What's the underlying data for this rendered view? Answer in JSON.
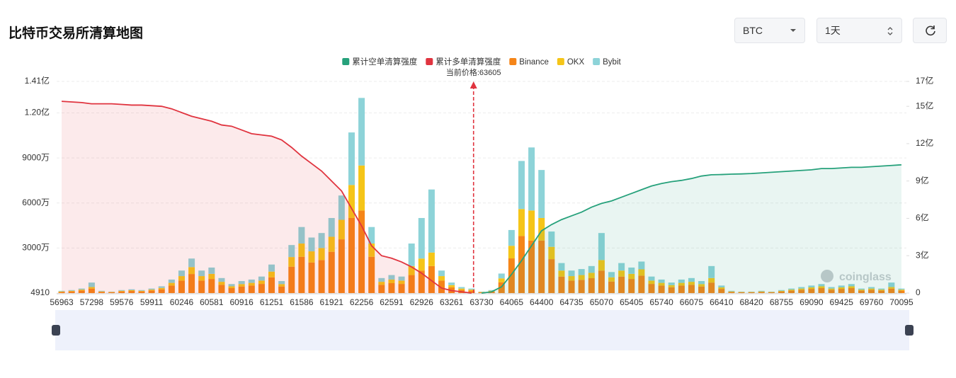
{
  "chart_data": {
    "type": "bar",
    "title": "比特币交易所清算地图",
    "stacked": true,
    "grid": true,
    "watermark": "coinglass",
    "annotation": {
      "text": "当前价格:63605",
      "x": 63605,
      "color": "#e0343f"
    },
    "categories": [
      "56963",
      null,
      null,
      "57298",
      null,
      null,
      "59576",
      null,
      null,
      "59911",
      null,
      null,
      "60246",
      null,
      null,
      "60581",
      null,
      null,
      "60916",
      null,
      null,
      "61251",
      null,
      null,
      "61586",
      null,
      null,
      "61921",
      null,
      null,
      "62256",
      null,
      null,
      "62591",
      null,
      null,
      "62926",
      null,
      null,
      "63261",
      null,
      null,
      "63730",
      null,
      null,
      "64065",
      null,
      null,
      "64400",
      null,
      null,
      "64735",
      null,
      null,
      "65070",
      null,
      null,
      "65405",
      null,
      null,
      "65740",
      null,
      null,
      "66075",
      null,
      null,
      "66410",
      null,
      null,
      "68420",
      null,
      null,
      "68755",
      null,
      null,
      "69090",
      null,
      null,
      "69425",
      null,
      null,
      "69760",
      null,
      null,
      "70095"
    ],
    "ylim": [
      4910,
      141000000
    ],
    "yticks": [
      4910,
      {
        "value": 30000000,
        "label": "3000万"
      },
      {
        "value": 60000000,
        "label": "6000万"
      },
      {
        "value": 90000000,
        "label": "9000万"
      },
      {
        "value": 120000000,
        "label": "1.20亿"
      },
      {
        "value": 141000000,
        "label": "1.41亿"
      }
    ],
    "y2lim": [
      0,
      1700000000
    ],
    "y2ticks": [
      0,
      {
        "value": 300000000,
        "label": "3亿"
      },
      {
        "value": 600000000,
        "label": "6亿"
      },
      {
        "value": 900000000,
        "label": "9亿"
      },
      {
        "value": 1200000000,
        "label": "12亿"
      },
      {
        "value": 1500000000,
        "label": "15亿"
      },
      {
        "value": 1700000000,
        "label": "17亿"
      }
    ],
    "series": [
      {
        "name": "累计空单清算强度",
        "color": "#26a17b",
        "type": "line",
        "axis": "y2",
        "values": [
          null,
          null,
          null,
          null,
          null,
          null,
          null,
          null,
          null,
          null,
          null,
          null,
          null,
          null,
          null,
          null,
          null,
          null,
          null,
          null,
          null,
          null,
          null,
          null,
          null,
          null,
          null,
          null,
          null,
          null,
          null,
          null,
          null,
          null,
          null,
          null,
          null,
          null,
          null,
          null,
          null,
          null,
          0,
          10000000,
          50000000,
          150000000,
          260000000,
          380000000,
          500000000,
          550000000,
          590000000,
          620000000,
          650000000,
          690000000,
          720000000,
          740000000,
          770000000,
          800000000,
          830000000,
          860000000,
          880000000,
          895000000,
          905000000,
          920000000,
          940000000,
          950000000,
          952000000,
          955000000,
          957000000,
          960000000,
          965000000,
          970000000,
          975000000,
          980000000,
          985000000,
          990000000,
          1000000000,
          1000000000,
          1005000000,
          1010000000,
          1010000000,
          1015000000,
          1020000000,
          1025000000,
          1030000000
        ]
      },
      {
        "name": "累计多单清算强度",
        "color": "#e0343f",
        "type": "line",
        "axis": "y2",
        "values": [
          1540000000,
          1535000000,
          1530000000,
          1520000000,
          1520000000,
          1520000000,
          1515000000,
          1510000000,
          1510000000,
          1505000000,
          1500000000,
          1480000000,
          1450000000,
          1420000000,
          1400000000,
          1380000000,
          1350000000,
          1340000000,
          1310000000,
          1280000000,
          1270000000,
          1260000000,
          1230000000,
          1170000000,
          1100000000,
          1040000000,
          980000000,
          900000000,
          820000000,
          680000000,
          540000000,
          380000000,
          300000000,
          280000000,
          250000000,
          210000000,
          160000000,
          100000000,
          40000000,
          20000000,
          10000000,
          0,
          null,
          null,
          null,
          null,
          null,
          null,
          null,
          null,
          null,
          null,
          null,
          null,
          null,
          null,
          null,
          null,
          null,
          null,
          null,
          null,
          null,
          null,
          null,
          null,
          null,
          null,
          null,
          null,
          null,
          null,
          null,
          null,
          null,
          null,
          null,
          null,
          null,
          null,
          null,
          null,
          null,
          null,
          null
        ]
      },
      {
        "name": "Binance",
        "color": "#f58518",
        "type": "bar",
        "values": [
          800000,
          1100000,
          1700000,
          3000000,
          800000,
          600000,
          1100000,
          1400000,
          1100000,
          1700000,
          2500000,
          5000000,
          8300000,
          12700000,
          8300000,
          9400000,
          5500000,
          3300000,
          4400000,
          5000000,
          6100000,
          10500000,
          4400000,
          17600000,
          24200000,
          20400000,
          22000000,
          27500000,
          35800000,
          50000000,
          55000000,
          24200000,
          5500000,
          6600000,
          6100000,
          12000000,
          15000000,
          18000000,
          8300000,
          3900000,
          2200000,
          1700000,
          600000,
          1100000,
          7200000,
          23100000,
          38000000,
          35000000,
          35000000,
          22600000,
          11000000,
          8300000,
          8800000,
          9900000,
          15000000,
          7700000,
          11000000,
          9400000,
          11600000,
          6100000,
          5000000,
          3900000,
          5000000,
          5500000,
          4400000,
          7000000,
          2800000,
          800000,
          600000,
          600000,
          800000,
          600000,
          1100000,
          1700000,
          2200000,
          2800000,
          3300000,
          2200000,
          2800000,
          3300000,
          1700000,
          2200000,
          1700000,
          3000000,
          1700000
        ]
      },
      {
        "name": "OKX",
        "color": "#f5c518",
        "type": "bar",
        "values": [
          300000,
          400000,
          600000,
          1000000,
          300000,
          200000,
          400000,
          500000,
          400000,
          600000,
          900000,
          1800000,
          3000000,
          4600000,
          3000000,
          3400000,
          2000000,
          1200000,
          1600000,
          1800000,
          2200000,
          3800000,
          1600000,
          6400000,
          8800000,
          7400000,
          8000000,
          10000000,
          13000000,
          22000000,
          30000000,
          8800000,
          2000000,
          2400000,
          2200000,
          6000000,
          8000000,
          9000000,
          3000000,
          1400000,
          800000,
          600000,
          200000,
          400000,
          2600000,
          8400000,
          18000000,
          20000000,
          15000000,
          8200000,
          4000000,
          3000000,
          3200000,
          3600000,
          7000000,
          2800000,
          4000000,
          3400000,
          4200000,
          2200000,
          1800000,
          1400000,
          1800000,
          2000000,
          1600000,
          3000000,
          1000000,
          300000,
          200000,
          200000,
          300000,
          200000,
          400000,
          600000,
          800000,
          1000000,
          1200000,
          800000,
          1000000,
          1200000,
          600000,
          800000,
          600000,
          1000000,
          600000
        ]
      },
      {
        "name": "Bybit",
        "color": "#8dd3d8",
        "type": "bar",
        "values": [
          400000,
          500000,
          700000,
          3000000,
          400000,
          200000,
          500000,
          600000,
          500000,
          700000,
          1100000,
          2200000,
          3700000,
          5700000,
          3700000,
          4200000,
          2500000,
          1500000,
          2000000,
          2200000,
          2700000,
          4700000,
          2000000,
          8000000,
          11000000,
          9200000,
          10000000,
          12500000,
          16200000,
          35000000,
          45000000,
          11000000,
          2500000,
          3000000,
          2700000,
          15000000,
          27000000,
          42000000,
          3700000,
          1700000,
          1000000,
          700000,
          200000,
          500000,
          3200000,
          10500000,
          32000000,
          42000000,
          32000000,
          10200000,
          5000000,
          3700000,
          4000000,
          4500000,
          18000000,
          3500000,
          5000000,
          4200000,
          5200000,
          2700000,
          2200000,
          1700000,
          2200000,
          2500000,
          2000000,
          8000000,
          1200000,
          400000,
          200000,
          200000,
          400000,
          200000,
          500000,
          700000,
          1000000,
          1200000,
          1500000,
          1000000,
          1200000,
          1500000,
          700000,
          1000000,
          700000,
          3000000,
          700000
        ]
      }
    ]
  },
  "controls": {
    "symbol": "BTC",
    "range": "1天"
  }
}
